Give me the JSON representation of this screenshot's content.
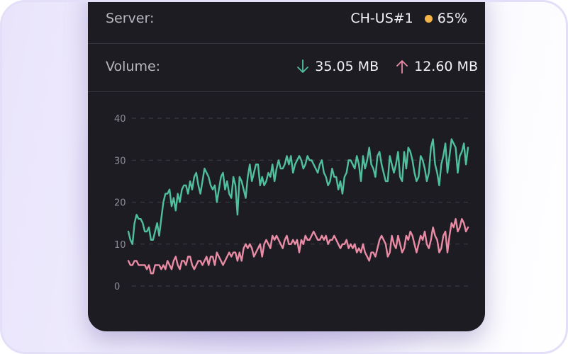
{
  "server": {
    "label": "Server:",
    "name": "CH-US#1",
    "load": "65%",
    "load_color": "#f5b445"
  },
  "volume": {
    "label": "Volume:",
    "download_icon": "arrow-down-icon",
    "download": "35.05 MB",
    "download_color": "#4fbf9c",
    "upload_icon": "arrow-up-icon",
    "upload": "12.60 MB",
    "upload_color": "#e98ba4"
  },
  "chart_data": {
    "type": "line",
    "yticks": [
      "0",
      "10",
      "20",
      "30",
      "40"
    ],
    "ylim": [
      0,
      40
    ],
    "grid": true,
    "series": [
      {
        "color": "#4fbf9c",
        "values": [
          13,
          11,
          10,
          15,
          17,
          16,
          16,
          15,
          13,
          13,
          14,
          11,
          11,
          13,
          15,
          12,
          16,
          20,
          22,
          22,
          23,
          19,
          21,
          18,
          22,
          20,
          23,
          24,
          24,
          22,
          25,
          23,
          26,
          27,
          24,
          22,
          25,
          28,
          27,
          26,
          24,
          23,
          24,
          20,
          23,
          26,
          27,
          23,
          25,
          22,
          21,
          26,
          24,
          17,
          26,
          25,
          23,
          21,
          26,
          29,
          25,
          27,
          29,
          29,
          24,
          26,
          24,
          25,
          27,
          26,
          29,
          25,
          28,
          30,
          28,
          28,
          29,
          31,
          29,
          31,
          27,
          29,
          30,
          31,
          30,
          28,
          29,
          31,
          30,
          30,
          29,
          28,
          27,
          29,
          30,
          27,
          26,
          24,
          25,
          28,
          26,
          26,
          23,
          25,
          22,
          26,
          27,
          30,
          30,
          29,
          28,
          31,
          29,
          25,
          31,
          28,
          30,
          33,
          29,
          28,
          26,
          31,
          32,
          29,
          27,
          25,
          25,
          31,
          29,
          27,
          29,
          32,
          26,
          25,
          32,
          28,
          33,
          32,
          30,
          27,
          25,
          26,
          31,
          30,
          28,
          25,
          27,
          33,
          35,
          29,
          27,
          24,
          29,
          31,
          34,
          27,
          31,
          35,
          34,
          33,
          27,
          31,
          32,
          34,
          29,
          33
        ]
      },
      {
        "color": "#e98ba4",
        "values": [
          6,
          5,
          5,
          6,
          6,
          5,
          5,
          5,
          5,
          4,
          5,
          3,
          3,
          5,
          5,
          5,
          4,
          5,
          4,
          6,
          5,
          4,
          6,
          7,
          5,
          4,
          6,
          6,
          5,
          7,
          7,
          5,
          4,
          5,
          6,
          6,
          5,
          6,
          7,
          5,
          7,
          7,
          5,
          8,
          7,
          6,
          5,
          6,
          7,
          8,
          7,
          8,
          8,
          6,
          8,
          6,
          9,
          10,
          9,
          10,
          9,
          7,
          8,
          9,
          10,
          7,
          10,
          11,
          10,
          9,
          12,
          11,
          12,
          11,
          10,
          9,
          11,
          12,
          10,
          10,
          11,
          10,
          11,
          8,
          11,
          10,
          12,
          11,
          11,
          12,
          13,
          12,
          11,
          11,
          12,
          11,
          12,
          10,
          11,
          11,
          12,
          11,
          10,
          9,
          10,
          10,
          11,
          9,
          10,
          9,
          10,
          8,
          9,
          8,
          10,
          8,
          7,
          6,
          8,
          8,
          7,
          9,
          11,
          12,
          11,
          10,
          7,
          8,
          12,
          10,
          9,
          12,
          10,
          8,
          9,
          12,
          11,
          13,
          12,
          10,
          8,
          10,
          12,
          11,
          13,
          10,
          9,
          11,
          14,
          12,
          11,
          8,
          9,
          12,
          13,
          8,
          12,
          15,
          14,
          16,
          13,
          14,
          16,
          15,
          13,
          14
        ]
      }
    ]
  }
}
